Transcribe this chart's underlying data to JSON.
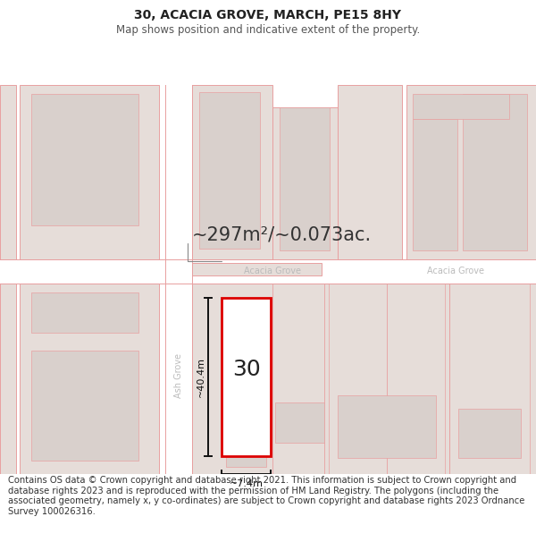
{
  "title": "30, ACACIA GROVE, MARCH, PE15 8HY",
  "subtitle": "Map shows position and indicative extent of the property.",
  "area_text": "~297m²/~0.073ac.",
  "dim_height": "~40.4m",
  "dim_width": "~7.4m",
  "label_number": "30",
  "street_acacia_left": "Acacia Grove",
  "street_acacia_right": "Acacia Grove",
  "street_ash": "Ash Grove",
  "footer": "Contains OS data © Crown copyright and database right 2021. This information is subject to Crown copyright and database rights 2023 and is reproduced with the permission of HM Land Registry. The polygons (including the associated geometry, namely x, y co-ordinates) are subject to Crown copyright and database rights 2023 Ordnance Survey 100026316.",
  "bg_color": "#ffffff",
  "map_bg": "#f7f2f0",
  "road_fill": "#ffffff",
  "block_fill": "#e6ddd9",
  "block_edge": "#e8a0a0",
  "inner_fill": "#d9d0cc",
  "highlight_fill": "#ffffff",
  "highlight_edge": "#dd0000",
  "dim_color": "#111111",
  "road_label_color": "#bbbbbb",
  "area_color": "#333333",
  "footer_color": "#333333",
  "title_size": 10,
  "subtitle_size": 8.5,
  "area_size": 15,
  "label_size": 18,
  "road_label_size": 7,
  "dim_label_size": 8,
  "footer_size": 7.2
}
